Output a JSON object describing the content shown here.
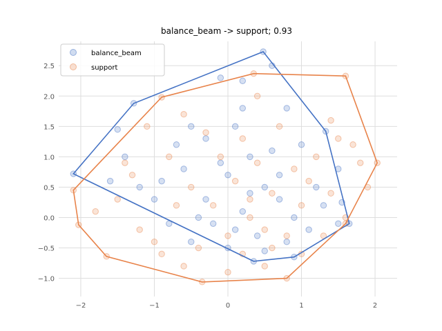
{
  "chart_data": {
    "type": "scatter",
    "title": "balance_beam -> support; 0.93",
    "xlabel": "",
    "ylabel": "",
    "xlim": [
      -2.3,
      2.3
    ],
    "ylim": [
      -1.3,
      2.9
    ],
    "x_ticks": [
      -2,
      -1,
      0,
      1,
      2
    ],
    "y_ticks": [
      -1.0,
      -0.5,
      0.0,
      0.5,
      1.0,
      1.5,
      2.0,
      2.5
    ],
    "grid": true,
    "legend_position": "top-left",
    "series": [
      {
        "name": "balance_beam",
        "color": "#4472c4",
        "hull": [
          [
            0.48,
            2.73
          ],
          [
            1.33,
            1.42
          ],
          [
            1.65,
            -0.1
          ],
          [
            0.9,
            -0.65
          ],
          [
            0.35,
            -0.72
          ],
          [
            -2.1,
            0.72
          ],
          [
            -1.28,
            1.88
          ]
        ],
        "points": [
          [
            0.48,
            2.73
          ],
          [
            1.33,
            1.42
          ],
          [
            1.65,
            -0.1
          ],
          [
            0.9,
            -0.65
          ],
          [
            0.35,
            -0.72
          ],
          [
            -2.1,
            0.72
          ],
          [
            -1.28,
            1.88
          ],
          [
            -0.1,
            2.3
          ],
          [
            0.2,
            2.25
          ],
          [
            0.6,
            2.5
          ],
          [
            -0.5,
            1.5
          ],
          [
            -1.5,
            1.45
          ],
          [
            -1.4,
            1.0
          ],
          [
            -1.2,
            0.5
          ],
          [
            0.8,
            1.8
          ],
          [
            1.0,
            1.2
          ],
          [
            1.5,
            0.8
          ],
          [
            1.55,
            0.25
          ],
          [
            1.5,
            -0.1
          ],
          [
            -0.8,
            -0.1
          ],
          [
            -0.5,
            -0.4
          ],
          [
            0.0,
            -0.5
          ],
          [
            0.5,
            -0.55
          ],
          [
            0.7,
            0.3
          ],
          [
            0.2,
            0.1
          ],
          [
            -0.3,
            0.3
          ],
          [
            -0.6,
            0.8
          ],
          [
            0.3,
            1.0
          ],
          [
            0.0,
            0.7
          ],
          [
            0.5,
            0.5
          ],
          [
            -0.2,
            -0.1
          ],
          [
            0.4,
            -0.3
          ],
          [
            0.9,
            0.0
          ],
          [
            1.2,
            0.5
          ],
          [
            -1.0,
            0.3
          ],
          [
            -0.7,
            1.2
          ],
          [
            0.1,
            1.5
          ],
          [
            0.6,
            1.1
          ],
          [
            -0.4,
            0.0
          ],
          [
            0.1,
            -0.2
          ],
          [
            0.8,
            -0.4
          ],
          [
            1.1,
            -0.2
          ],
          [
            -0.9,
            0.6
          ],
          [
            0.3,
            0.4
          ],
          [
            -0.1,
            0.9
          ],
          [
            0.2,
            1.8
          ],
          [
            0.7,
            0.7
          ],
          [
            1.3,
            0.2
          ],
          [
            -1.6,
            0.6
          ],
          [
            -0.3,
            1.3
          ]
        ]
      },
      {
        "name": "support",
        "color": "#e8834a",
        "hull": [
          [
            0.35,
            2.37
          ],
          [
            1.6,
            2.33
          ],
          [
            2.03,
            0.9
          ],
          [
            1.6,
            -0.1
          ],
          [
            0.8,
            -1.0
          ],
          [
            -0.35,
            -1.06
          ],
          [
            -1.65,
            -0.64
          ],
          [
            -2.03,
            -0.12
          ],
          [
            -2.1,
            0.45
          ],
          [
            -0.9,
            1.98
          ]
        ],
        "points": [
          [
            0.35,
            2.37
          ],
          [
            1.6,
            2.33
          ],
          [
            2.03,
            0.9
          ],
          [
            1.6,
            -0.1
          ],
          [
            0.8,
            -1.0
          ],
          [
            -0.35,
            -1.06
          ],
          [
            -1.65,
            -0.64
          ],
          [
            -2.03,
            -0.12
          ],
          [
            -2.1,
            0.45
          ],
          [
            -0.9,
            1.98
          ],
          [
            1.8,
            0.9
          ],
          [
            1.9,
            0.5
          ],
          [
            1.7,
            1.2
          ],
          [
            1.4,
            1.6
          ],
          [
            -1.5,
            0.3
          ],
          [
            -1.3,
            0.7
          ],
          [
            -1.0,
            -0.4
          ],
          [
            -0.6,
            -0.8
          ],
          [
            0.0,
            -0.9
          ],
          [
            0.5,
            -0.8
          ],
          [
            1.0,
            -0.6
          ],
          [
            1.3,
            -0.3
          ],
          [
            -1.8,
            0.1
          ],
          [
            -0.2,
            0.2
          ],
          [
            0.3,
            0.0
          ],
          [
            0.6,
            0.4
          ],
          [
            1.0,
            0.2
          ],
          [
            -0.5,
            0.5
          ],
          [
            0.1,
            0.6
          ],
          [
            0.4,
            0.9
          ],
          [
            0.9,
            0.8
          ],
          [
            1.2,
            1.0
          ],
          [
            -0.8,
            1.0
          ],
          [
            -0.3,
            1.4
          ],
          [
            0.2,
            1.3
          ],
          [
            0.7,
            1.5
          ],
          [
            -1.1,
            1.5
          ],
          [
            -0.7,
            0.2
          ],
          [
            0.0,
            -0.3
          ],
          [
            0.5,
            -0.2
          ],
          [
            1.4,
            0.4
          ],
          [
            -1.2,
            -0.2
          ],
          [
            -0.4,
            -0.5
          ],
          [
            0.8,
            -0.3
          ],
          [
            1.1,
            0.6
          ],
          [
            -0.1,
            1.0
          ],
          [
            0.3,
            0.3
          ],
          [
            0.6,
            -0.5
          ],
          [
            -1.4,
            0.9
          ],
          [
            1.6,
            0.0
          ],
          [
            -0.9,
            -0.6
          ],
          [
            0.2,
            -0.6
          ],
          [
            1.5,
            1.3
          ],
          [
            -0.6,
            1.7
          ],
          [
            0.4,
            2.0
          ]
        ]
      }
    ]
  }
}
